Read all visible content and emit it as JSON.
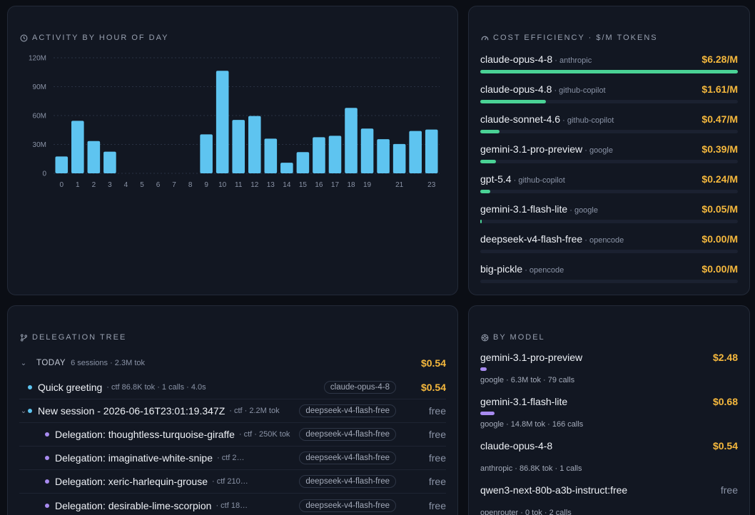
{
  "activity": {
    "title": "ACTIVITY BY HOUR OF DAY",
    "icon": "clock-icon",
    "chart_data": {
      "type": "bar",
      "title": "ACTIVITY BY HOUR OF DAY",
      "categories": [
        0,
        1,
        2,
        3,
        4,
        5,
        6,
        7,
        8,
        9,
        10,
        11,
        12,
        13,
        14,
        15,
        16,
        17,
        18,
        19,
        20,
        21,
        22,
        23
      ],
      "tick_labels": [
        "0",
        "1",
        "2",
        "3",
        "4",
        "5",
        "6",
        "7",
        "8",
        "9",
        "10",
        "11",
        "12",
        "13",
        "14",
        "15",
        "16",
        "17",
        "18",
        "19",
        "",
        "21",
        "",
        "23"
      ],
      "values": [
        17.5,
        54.5,
        33.5,
        22.5,
        0,
        0,
        0,
        0,
        0,
        40.5,
        106.5,
        55.5,
        59.5,
        36,
        11,
        22,
        37.5,
        39,
        68,
        46.5,
        35.5,
        30.5,
        44,
        45.5
      ],
      "ylim": [
        0,
        120
      ],
      "yticks": [
        0,
        30,
        60,
        90,
        120
      ],
      "ytick_labels": [
        "0",
        "30M",
        "60M",
        "90M",
        "120M"
      ],
      "grid": true,
      "color": "#5ec4f0"
    }
  },
  "cost_efficiency": {
    "title": "COST EFFICIENCY · $/M TOKENS",
    "icon": "gauge-icon",
    "bar_color": "#4ad295",
    "rows": [
      {
        "name": "claude-opus-4-8",
        "provider": " · anthropic",
        "price": "$6.28/M",
        "fraction": 1.0
      },
      {
        "name": "claude-opus-4.8",
        "provider": " · github-copilot",
        "price": "$1.61/M",
        "fraction": 0.256
      },
      {
        "name": "claude-sonnet-4.6",
        "provider": " · github-copilot",
        "price": "$0.47/M",
        "fraction": 0.075
      },
      {
        "name": "gemini-3.1-pro-preview",
        "provider": " · google",
        "price": "$0.39/M",
        "fraction": 0.062
      },
      {
        "name": "gpt-5.4",
        "provider": " · github-copilot",
        "price": "$0.24/M",
        "fraction": 0.038
      },
      {
        "name": "gemini-3.1-flash-lite",
        "provider": " · google",
        "price": "$0.05/M",
        "fraction": 0.008
      },
      {
        "name": "deepseek-v4-flash-free",
        "provider": " · opencode",
        "price": "$0.00/M",
        "fraction": 0
      },
      {
        "name": "big-pickle",
        "provider": " · opencode",
        "price": "$0.00/M",
        "fraction": 0
      }
    ]
  },
  "delegation": {
    "title": "DELEGATION TREE",
    "icon": "branch-icon",
    "group": {
      "label": "TODAY",
      "meta": "6 sessions · 2.3M tok",
      "cost": "$0.54"
    },
    "rows": [
      {
        "chevron": false,
        "dot": "cyan",
        "indent": 0,
        "name": "Quick greeting",
        "meta": "· ctf   86.8K tok · 1 calls · 4.0s",
        "model": "claude-opus-4-8",
        "cost": "$0.54",
        "paid": true
      },
      {
        "chevron": true,
        "dot": "cyan",
        "indent": 0,
        "name": "New session - 2026-06-16T23:01:19.347Z",
        "meta": "· ctf · 2.2M tok",
        "model": "deepseek-v4-flash-free",
        "cost": "free",
        "paid": false
      },
      {
        "chevron": false,
        "dot": "purple",
        "indent": 1,
        "name": "Delegation: thoughtless-turquoise-giraffe",
        "meta": "· ctf · 250K tok",
        "model": "deepseek-v4-flash-free",
        "cost": "free",
        "paid": false
      },
      {
        "chevron": false,
        "dot": "purple",
        "indent": 1,
        "name": "Delegation: imaginative-white-snipe",
        "meta": "· ctf   2…",
        "model": "deepseek-v4-flash-free",
        "cost": "free",
        "paid": false
      },
      {
        "chevron": false,
        "dot": "purple",
        "indent": 1,
        "name": "Delegation: xeric-harlequin-grouse",
        "meta": "· ctf   210…",
        "model": "deepseek-v4-flash-free",
        "cost": "free",
        "paid": false
      },
      {
        "chevron": false,
        "dot": "purple",
        "indent": 1,
        "name": "Delegation: desirable-lime-scorpion",
        "meta": "· ctf   18…",
        "model": "deepseek-v4-flash-free",
        "cost": "free",
        "paid": false
      }
    ]
  },
  "by_model": {
    "title": "BY MODEL",
    "icon": "cube-icon",
    "bar_color": "#a88bf0",
    "rows": [
      {
        "name": "gemini-3.1-pro-preview",
        "cost": "$2.48",
        "paid": true,
        "meta": "google · 6.3M tok · 79 calls",
        "fraction": 0.025
      },
      {
        "name": "gemini-3.1-flash-lite",
        "cost": "$0.68",
        "paid": true,
        "meta": "google · 14.8M tok · 166 calls",
        "fraction": 0.056
      },
      {
        "name": "claude-opus-4-8",
        "cost": "$0.54",
        "paid": true,
        "meta": "anthropic · 86.8K tok · 1 calls",
        "fraction": 0
      },
      {
        "name": "qwen3-next-80b-a3b-instruct:free",
        "cost": "free",
        "paid": false,
        "meta": "openrouter · 0 tok · 2 calls",
        "fraction": 0
      }
    ]
  }
}
